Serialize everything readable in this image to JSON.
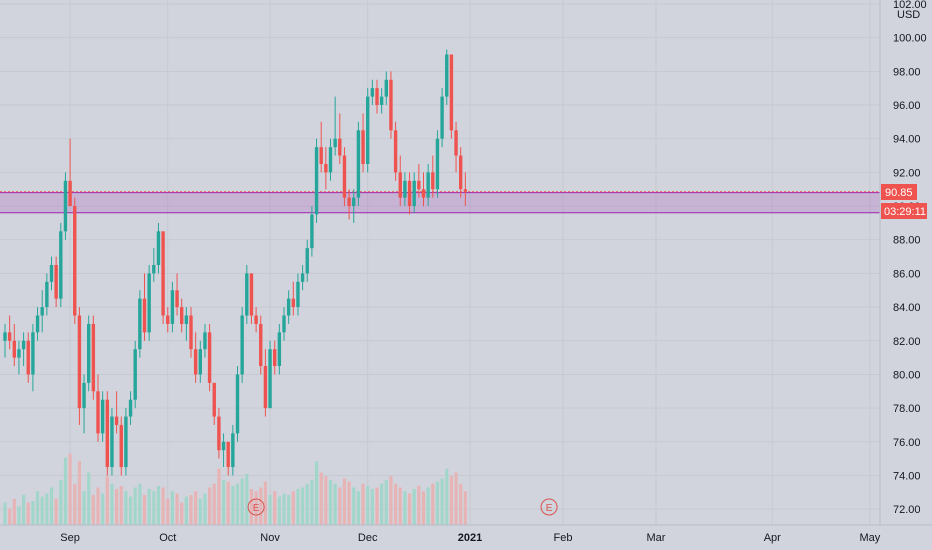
{
  "chart_data": {
    "type": "candlestick",
    "currency": "USD",
    "ylim": [
      71,
      102
    ],
    "y_ticks": [
      "72.00",
      "74.00",
      "76.00",
      "78.00",
      "80.00",
      "82.00",
      "84.00",
      "86.00",
      "88.00",
      "90.00",
      "92.00",
      "94.00",
      "96.00",
      "98.00",
      "100.00",
      "102.00"
    ],
    "x_ticks": [
      {
        "label": "Sep",
        "bold": false,
        "x_index": 14
      },
      {
        "label": "Oct",
        "bold": false,
        "x_index": 35
      },
      {
        "label": "Nov",
        "bold": false,
        "x_index": 57
      },
      {
        "label": "Dec",
        "bold": false,
        "x_index": 78
      },
      {
        "label": "2021",
        "bold": true,
        "x_index": 100
      },
      {
        "label": "Feb",
        "bold": false,
        "x_index": 120
      },
      {
        "label": "Mar",
        "bold": false,
        "x_index": 140
      },
      {
        "label": "Apr",
        "bold": false,
        "x_index": 165
      },
      {
        "label": "May",
        "bold": false,
        "x_index": 186
      }
    ],
    "last_price": "90.85",
    "countdown": "03:29:11",
    "zone": {
      "top": 90.8,
      "bottom": 89.6
    },
    "earnings_markers": [
      {
        "label": "E",
        "x_index": 54
      },
      {
        "label": "E",
        "x_index": 117
      }
    ],
    "colors": {
      "up": "#26a69a",
      "down": "#ef5350",
      "zone": "#9c27b0",
      "background": "#d1d4dc"
    },
    "candles": [
      [
        82,
        83,
        81,
        82.5,
        1
      ],
      [
        82.5,
        83.5,
        81.5,
        82,
        0
      ],
      [
        82,
        83,
        80.5,
        81,
        0
      ],
      [
        81,
        82,
        80,
        81.5,
        1
      ],
      [
        81.5,
        82.5,
        80.5,
        82,
        1
      ],
      [
        82,
        82.5,
        79.5,
        80,
        0
      ],
      [
        80,
        83,
        79,
        82.5,
        1
      ],
      [
        82.5,
        84,
        82,
        83.5,
        1
      ],
      [
        83.5,
        85,
        82.5,
        84,
        1
      ],
      [
        84,
        86,
        83.5,
        85.5,
        1
      ],
      [
        85.5,
        87,
        85,
        86.5,
        1
      ],
      [
        86.5,
        87,
        84,
        84.5,
        0
      ],
      [
        84.5,
        89,
        84,
        88.5,
        1
      ],
      [
        88.5,
        92,
        88,
        91.5,
        1
      ],
      [
        91.5,
        94,
        90,
        90,
        0
      ],
      [
        90,
        90.5,
        83,
        83.5,
        0
      ],
      [
        83.5,
        84,
        77,
        78,
        0
      ],
      [
        78,
        80,
        76.5,
        79.5,
        1
      ],
      [
        79.5,
        83.5,
        79,
        83,
        1
      ],
      [
        83,
        83.5,
        78.5,
        79,
        0
      ],
      [
        79,
        80,
        76,
        76.5,
        0
      ],
      [
        76.5,
        79,
        76,
        78.5,
        1
      ],
      [
        78.5,
        79,
        74,
        74.5,
        0
      ],
      [
        74.5,
        78,
        74,
        77.5,
        1
      ],
      [
        77.5,
        79,
        76.5,
        77,
        0
      ],
      [
        77,
        77.5,
        74,
        74.5,
        0
      ],
      [
        74.5,
        78,
        74,
        77.5,
        1
      ],
      [
        77.5,
        79,
        77,
        78.5,
        1
      ],
      [
        78.5,
        82,
        78,
        81.5,
        1
      ],
      [
        81.5,
        85,
        81,
        84.5,
        1
      ],
      [
        84.5,
        86,
        82,
        82.5,
        0
      ],
      [
        82.5,
        86.5,
        82,
        86,
        1
      ],
      [
        86,
        87.5,
        85.5,
        86.5,
        1
      ],
      [
        86.5,
        89,
        86,
        88.5,
        1
      ],
      [
        88.5,
        88.5,
        83,
        83.5,
        0
      ],
      [
        83.5,
        84,
        82.5,
        83,
        0
      ],
      [
        83,
        85.5,
        82.5,
        85,
        1
      ],
      [
        85,
        86,
        83.5,
        84,
        0
      ],
      [
        84,
        84.5,
        82.5,
        83,
        0
      ],
      [
        83,
        84,
        82,
        83.5,
        1
      ],
      [
        83.5,
        84,
        81,
        81.5,
        0
      ],
      [
        81.5,
        82.5,
        79.5,
        80,
        0
      ],
      [
        80,
        82,
        79.5,
        81.5,
        1
      ],
      [
        81.5,
        83,
        81,
        82.5,
        1
      ],
      [
        82.5,
        83,
        79,
        79.5,
        0
      ],
      [
        79.5,
        79.5,
        77,
        77.5,
        0
      ],
      [
        77.5,
        78,
        75,
        75.5,
        0
      ],
      [
        75.5,
        76.5,
        74.5,
        76,
        1
      ],
      [
        76,
        76,
        74,
        74.5,
        0
      ],
      [
        74.5,
        77,
        74,
        76.5,
        1
      ],
      [
        76.5,
        80.5,
        76,
        80,
        1
      ],
      [
        80,
        84,
        79.5,
        83.5,
        1
      ],
      [
        83.5,
        86.5,
        83,
        86,
        1
      ],
      [
        86,
        86,
        83,
        83.5,
        0
      ],
      [
        83.5,
        84,
        82.5,
        83,
        0
      ],
      [
        83,
        83.5,
        80,
        80.5,
        0
      ],
      [
        80.5,
        81.5,
        77.5,
        78,
        0
      ],
      [
        78,
        82,
        78,
        81.5,
        1
      ],
      [
        81.5,
        82,
        80,
        80.5,
        0
      ],
      [
        80.5,
        83,
        80,
        82.5,
        1
      ],
      [
        82.5,
        84,
        82,
        83.5,
        1
      ],
      [
        83.5,
        85,
        83,
        84.5,
        1
      ],
      [
        84.5,
        85.5,
        83.5,
        84,
        0
      ],
      [
        84,
        86,
        83.5,
        85.5,
        1
      ],
      [
        85.5,
        86.5,
        85,
        86,
        1
      ],
      [
        86,
        88,
        85.5,
        87.5,
        1
      ],
      [
        87.5,
        90,
        87,
        89.5,
        1
      ],
      [
        89.5,
        94,
        89,
        93.5,
        1
      ],
      [
        93.5,
        95,
        92,
        92.5,
        0
      ],
      [
        92.5,
        93.5,
        91,
        92,
        0
      ],
      [
        92,
        94,
        91.5,
        93.5,
        1
      ],
      [
        93.5,
        96.5,
        93,
        94,
        1
      ],
      [
        94,
        95.5,
        92.5,
        93,
        0
      ],
      [
        93,
        93.5,
        90,
        90.5,
        0
      ],
      [
        90.5,
        91,
        89.2,
        90,
        0
      ],
      [
        90,
        91,
        89,
        90.5,
        1
      ],
      [
        90.5,
        95,
        90,
        94.5,
        1
      ],
      [
        94.5,
        95.5,
        92,
        92.5,
        0
      ],
      [
        92.5,
        97,
        92,
        96.5,
        1
      ],
      [
        96.5,
        97.5,
        96,
        97,
        1
      ],
      [
        97,
        97.5,
        95.5,
        96,
        0
      ],
      [
        96,
        97,
        95.5,
        96.5,
        1
      ],
      [
        96.5,
        98,
        96,
        97.5,
        1
      ],
      [
        97.5,
        98,
        94,
        94.5,
        0
      ],
      [
        94.5,
        95,
        91.5,
        92,
        0
      ],
      [
        92,
        93,
        90,
        90.5,
        0
      ],
      [
        90.5,
        92,
        90,
        91.5,
        1
      ],
      [
        91.5,
        92,
        89.5,
        90,
        0
      ],
      [
        90,
        92,
        89.6,
        91.5,
        1
      ],
      [
        91.5,
        92.5,
        90.5,
        91,
        0
      ],
      [
        91,
        92,
        90,
        90.5,
        0
      ],
      [
        90.5,
        92.5,
        90,
        92,
        1
      ],
      [
        92,
        93,
        90.5,
        91,
        0
      ],
      [
        91,
        94.5,
        90.5,
        94,
        1
      ],
      [
        94,
        97,
        93.5,
        96.5,
        1
      ],
      [
        96.5,
        99.3,
        96,
        99,
        1
      ],
      [
        99,
        99,
        94,
        94.5,
        0
      ],
      [
        94.5,
        95,
        92,
        93,
        0
      ],
      [
        93,
        93.5,
        90.5,
        91,
        0
      ],
      [
        91,
        92,
        90,
        90.85,
        0
      ]
    ],
    "volumes": [
      0.3,
      0.22,
      0.35,
      0.25,
      0.4,
      0.3,
      0.32,
      0.45,
      0.38,
      0.42,
      0.5,
      0.35,
      0.6,
      0.9,
      0.95,
      0.55,
      0.85,
      0.45,
      0.7,
      0.4,
      0.5,
      0.42,
      0.65,
      0.55,
      0.48,
      0.52,
      0.45,
      0.38,
      0.5,
      0.55,
      0.4,
      0.48,
      0.45,
      0.52,
      0.5,
      0.35,
      0.45,
      0.42,
      0.3,
      0.38,
      0.4,
      0.45,
      0.35,
      0.42,
      0.5,
      0.55,
      0.75,
      0.6,
      0.58,
      0.52,
      0.55,
      0.62,
      0.68,
      0.48,
      0.45,
      0.5,
      0.58,
      0.4,
      0.45,
      0.38,
      0.42,
      0.4,
      0.45,
      0.48,
      0.5,
      0.55,
      0.6,
      0.85,
      0.7,
      0.65,
      0.6,
      0.55,
      0.5,
      0.62,
      0.58,
      0.5,
      0.45,
      0.55,
      0.52,
      0.48,
      0.5,
      0.55,
      0.6,
      0.65,
      0.55,
      0.5,
      0.45,
      0.42,
      0.48,
      0.52,
      0.45,
      0.5,
      0.55,
      0.58,
      0.62,
      0.75,
      0.65,
      0.7,
      0.55,
      0.45
    ]
  }
}
